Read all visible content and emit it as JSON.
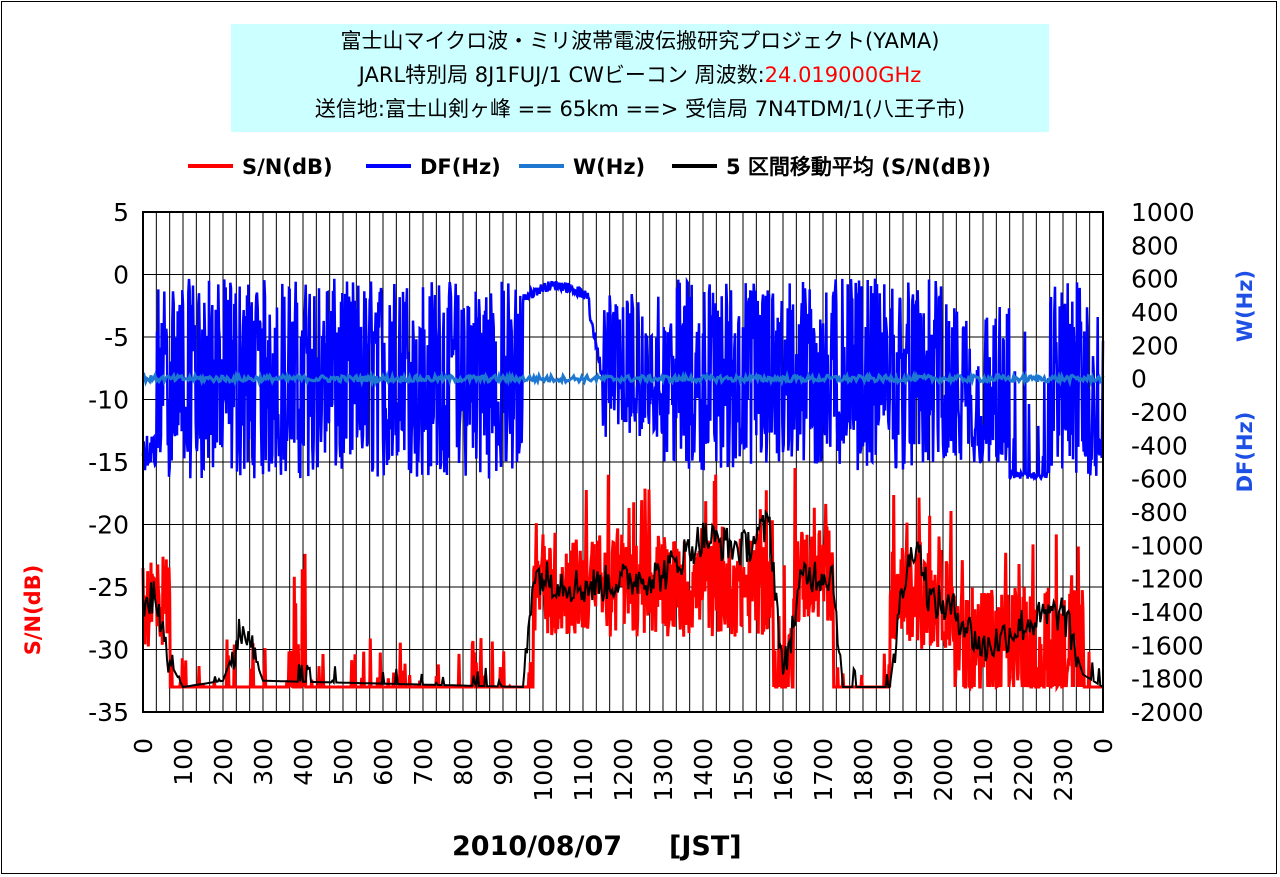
{
  "title": {
    "line1": "富士山マイクロ波・ミリ波帯電波伝搬研究プロジェクト(YAMA)",
    "line2_prefix": "JARL特別局 8J1FUJ/1 CWビーコン 周波数:",
    "line2_freq": "24.019000GHz",
    "line3": "送信地:富士山剣ヶ峰  == 65km ==> 受信局 7N4TDM/1(八王子市)"
  },
  "colors": {
    "sn": "#ff0000",
    "df": "#0000ff",
    "w": "#1e78d2",
    "ma": "#000000",
    "left_axis_title": "#ff0000",
    "right_axis_title": "#1e50e6"
  },
  "chart_data": {
    "type": "line",
    "legend": [
      {
        "key": "sn",
        "label": "S/N(dB)"
      },
      {
        "key": "df",
        "label": "DF(Hz)"
      },
      {
        "key": "w",
        "label": "W(Hz)"
      },
      {
        "key": "ma",
        "label": "5 区間移動平均 (S/N(dB))"
      }
    ],
    "legend_position": "top",
    "ylabel_left": "S/N(dB)",
    "ylabel_right_top": "W(Hz)",
    "ylabel_right_bottom": "DF(Hz)",
    "xlabel": "2010/08/07     [JST]",
    "ylim_left": [
      -35,
      5
    ],
    "ylim_right": [
      -2000,
      1000
    ],
    "yticks_left": [
      "5",
      "0",
      "-5",
      "-10",
      "-15",
      "-20",
      "-25",
      "-30",
      "-35"
    ],
    "yticks_right": [
      "1000",
      "800",
      "600",
      "400",
      "200",
      "0",
      "-200",
      "-400",
      "-600",
      "-800",
      "-1000",
      "-1200",
      "-1400",
      "-1600",
      "-1800",
      "-2000"
    ],
    "xticks": [
      "0",
      "100",
      "200",
      "300",
      "400",
      "500",
      "600",
      "700",
      "800",
      "900",
      "1000",
      "1100",
      "1200",
      "1300",
      "1400",
      "1500",
      "1600",
      "1700",
      "1800",
      "1900",
      "2000",
      "2100",
      "2200",
      "2300",
      "0"
    ],
    "grid": true,
    "x_unit": "HHMM (JST)",
    "sn_baseline_segments": [
      {
        "from": "0:00",
        "to": "0:40",
        "level": -26
      },
      {
        "from": "0:40",
        "to": "9:45",
        "level": -33
      },
      {
        "from": "9:45",
        "to": "15:45",
        "level": -25
      },
      {
        "from": "15:45",
        "to": "16:15",
        "level": -32
      },
      {
        "from": "16:15",
        "to": "17:15",
        "level": -24
      },
      {
        "from": "17:15",
        "to": "18:40",
        "level": -33
      },
      {
        "from": "18:40",
        "to": "20:15",
        "level": -26
      },
      {
        "from": "20:15",
        "to": "23:30",
        "level": -29
      },
      {
        "from": "23:30",
        "to": "24:00",
        "level": -33
      }
    ],
    "sn_ma_key_points": [
      {
        "t": "0:00",
        "v": -26
      },
      {
        "t": "0:20",
        "v": -26
      },
      {
        "t": "0:40",
        "v": -31
      },
      {
        "t": "1:00",
        "v": -33
      },
      {
        "t": "2:00",
        "v": -32.5
      },
      {
        "t": "2:30",
        "v": -28
      },
      {
        "t": "3:00",
        "v": -32.5
      },
      {
        "t": "9:30",
        "v": -33
      },
      {
        "t": "9:45",
        "v": -24
      },
      {
        "t": "11:00",
        "v": -25
      },
      {
        "t": "13:00",
        "v": -24
      },
      {
        "t": "14:00",
        "v": -21
      },
      {
        "t": "15:00",
        "v": -22
      },
      {
        "t": "15:40",
        "v": -20
      },
      {
        "t": "16:00",
        "v": -32
      },
      {
        "t": "16:30",
        "v": -24
      },
      {
        "t": "17:15",
        "v": -24
      },
      {
        "t": "17:30",
        "v": -33
      },
      {
        "t": "18:40",
        "v": -33
      },
      {
        "t": "19:00",
        "v": -25
      },
      {
        "t": "19:20",
        "v": -21
      },
      {
        "t": "19:40",
        "v": -26
      },
      {
        "t": "20:20",
        "v": -27
      },
      {
        "t": "21:00",
        "v": -30
      },
      {
        "t": "22:00",
        "v": -28
      },
      {
        "t": "23:00",
        "v": -27
      },
      {
        "t": "23:30",
        "v": -32
      },
      {
        "t": "24:00",
        "v": -33
      }
    ],
    "df_range_hz": [
      -600,
      600
    ],
    "w_level_hz": 0
  }
}
